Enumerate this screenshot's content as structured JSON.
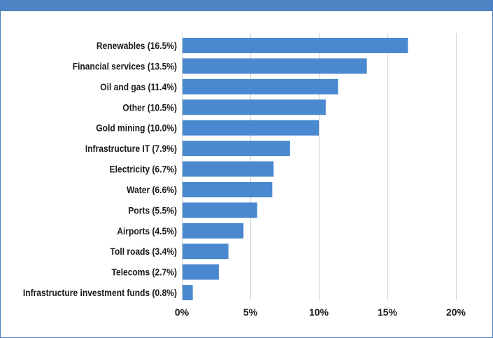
{
  "colors": {
    "bar": "#4a89d0",
    "frame": "#4a7fc0",
    "header": "#4d85c5",
    "grid": "#d4d4d4",
    "text": "#1a1a1a"
  },
  "chart_data": {
    "type": "bar",
    "orientation": "horizontal",
    "title": "",
    "xlabel": "",
    "ylabel": "",
    "categories": [
      "Renewables (16.5%)",
      "Financial services (13.5%)",
      "Oil and gas (11.4%)",
      "Other (10.5%)",
      "Gold mining (10.0%)",
      "Infrastructure IT (7.9%)",
      "Electricity (6.7%)",
      "Water (6.6%)",
      "Ports (5.5%)",
      "Airports (4.5%)",
      "Toll roads (3.4%)",
      "Telecoms (2.7%)",
      "Infrastructure investment funds (0.8%)"
    ],
    "values": [
      16.5,
      13.5,
      11.4,
      10.5,
      10.0,
      7.9,
      6.7,
      6.6,
      5.5,
      4.5,
      3.4,
      2.7,
      0.8
    ],
    "xlim": [
      0,
      20
    ],
    "xticks": [
      0,
      5,
      10,
      15,
      20
    ],
    "xtick_labels": [
      "0%",
      "5%",
      "10%",
      "15%",
      "20%"
    ],
    "grid": "vertical",
    "legend": "none"
  }
}
